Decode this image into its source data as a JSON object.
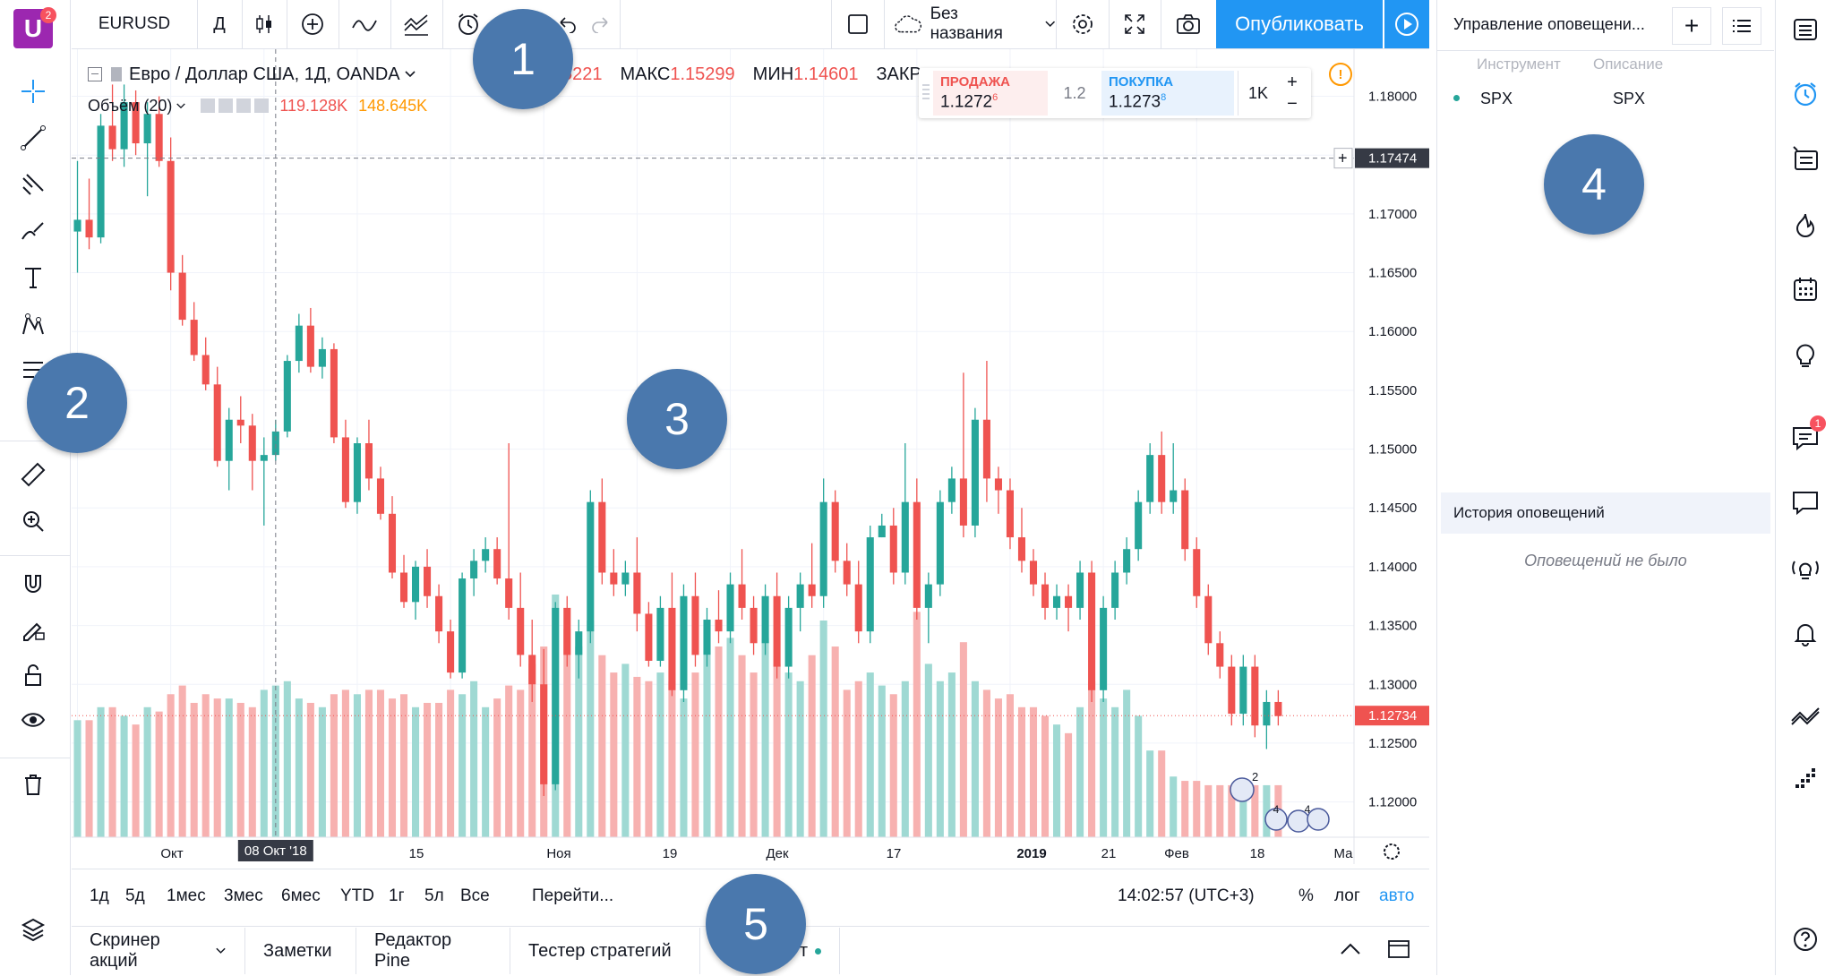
{
  "app": {
    "logo_letter": "U",
    "logo_badge": "2"
  },
  "toolbar": {
    "symbol": "EURUSD",
    "interval": "Д",
    "layout_name": "Без названия",
    "publish_label": "Опубликовать"
  },
  "legend": {
    "title": "Евро / Доллар США, 1Д, OANDA",
    "o_value": "5221",
    "high_label": "МАКС",
    "high_value": "1.15299",
    "low_label": "МИН",
    "low_value": "1.14601",
    "close_label": "ЗАКР",
    "volume_label": "Объём (20)",
    "volume_value_1": "119.128K",
    "volume_value_2": "148.645K"
  },
  "trade": {
    "sell_label": "ПРОДАЖА",
    "sell_price": "1.1272",
    "sell_sup": "6",
    "spread": "1.2",
    "buy_label": "ПОКУПКА",
    "buy_price": "1.1273",
    "buy_sup": "8",
    "qty": "1K"
  },
  "price_scale": {
    "ticks": [
      "1.18000",
      "1.17500",
      "1.17000",
      "1.16500",
      "1.16000",
      "1.15500",
      "1.15000",
      "1.14500",
      "1.14000",
      "1.13500",
      "1.13000",
      "1.12500",
      "1.12000"
    ],
    "crosshair_price": "1.17474",
    "last_price": "1.12734"
  },
  "time_scale": {
    "labels": [
      "Окт",
      "15",
      "Ноя",
      "19",
      "Дек",
      "17",
      "2019",
      "21",
      "Фев",
      "18",
      "Ма"
    ],
    "crosshair_date": "08 Окт '18"
  },
  "ranges": {
    "items": [
      "1д",
      "5д",
      "1мес",
      "3мес",
      "6мес",
      "YTD",
      "1г",
      "5л",
      "Все"
    ],
    "goto": "Перейти...",
    "time": "14:02:57 (UTC+3)",
    "percent": "%",
    "log": "лог",
    "auto": "авто"
  },
  "bottom_tabs": [
    "Скринер акций",
    "Заметки",
    "Редактор Pine",
    "Тестер стратегий",
    "т"
  ],
  "alerts": {
    "title": "Управление оповещени...",
    "col_instrument": "Инструмент",
    "col_description": "Описание",
    "rows": [
      {
        "instrument": "SPX",
        "description": "SPX"
      }
    ],
    "history_title": "История оповещений",
    "history_empty": "Оповещений не было"
  },
  "right_sidebar": {
    "chat_badge": "1"
  },
  "callouts": [
    "1",
    "2",
    "3",
    "4",
    "5"
  ],
  "events": {
    "badge_a": "2",
    "badge_b": "4",
    "badge_c": "4"
  },
  "colors": {
    "up": "#26a69a",
    "down": "#ef5350",
    "accent": "#2196f3",
    "callout": "#4a78ad"
  },
  "chart_data": {
    "type": "candlestick",
    "symbol": "EURUSD",
    "ylim": [
      1.117,
      1.184
    ],
    "candles": [
      [
        1.1685,
        1.1745,
        1.165,
        1.1695
      ],
      [
        1.1695,
        1.173,
        1.167,
        1.168
      ],
      [
        1.168,
        1.1785,
        1.1675,
        1.1775
      ],
      [
        1.1775,
        1.181,
        1.1745,
        1.1755
      ],
      [
        1.1755,
        1.181,
        1.174,
        1.1795
      ],
      [
        1.1795,
        1.1805,
        1.175,
        1.176
      ],
      [
        1.176,
        1.1795,
        1.1715,
        1.1785
      ],
      [
        1.1785,
        1.18,
        1.174,
        1.1745
      ],
      [
        1.1745,
        1.1765,
        1.1635,
        1.165
      ],
      [
        1.165,
        1.1665,
        1.1605,
        1.161
      ],
      [
        1.161,
        1.1625,
        1.1575,
        1.158
      ],
      [
        1.158,
        1.1595,
        1.155,
        1.1555
      ],
      [
        1.1555,
        1.157,
        1.1485,
        1.149
      ],
      [
        1.149,
        1.1535,
        1.1465,
        1.1525
      ],
      [
        1.1525,
        1.1545,
        1.1505,
        1.152
      ],
      [
        1.152,
        1.153,
        1.1465,
        1.149
      ],
      [
        1.149,
        1.151,
        1.1435,
        1.1495
      ],
      [
        1.1495,
        1.1525,
        1.149,
        1.1515
      ],
      [
        1.1515,
        1.158,
        1.151,
        1.1575
      ],
      [
        1.1575,
        1.1615,
        1.1565,
        1.1605
      ],
      [
        1.1605,
        1.162,
        1.1565,
        1.157
      ],
      [
        1.157,
        1.1595,
        1.156,
        1.1585
      ],
      [
        1.1585,
        1.159,
        1.1505,
        1.151
      ],
      [
        1.151,
        1.1525,
        1.145,
        1.1455
      ],
      [
        1.1455,
        1.151,
        1.1445,
        1.1505
      ],
      [
        1.1505,
        1.1525,
        1.1465,
        1.1475
      ],
      [
        1.1475,
        1.1485,
        1.144,
        1.1445
      ],
      [
        1.1445,
        1.146,
        1.139,
        1.1395
      ],
      [
        1.1395,
        1.141,
        1.1365,
        1.137
      ],
      [
        1.137,
        1.1405,
        1.1355,
        1.14
      ],
      [
        1.14,
        1.1415,
        1.1365,
        1.1375
      ],
      [
        1.1375,
        1.1385,
        1.1335,
        1.1345
      ],
      [
        1.1345,
        1.1355,
        1.1305,
        1.131
      ],
      [
        1.131,
        1.1395,
        1.1305,
        1.139
      ],
      [
        1.139,
        1.1415,
        1.1375,
        1.1405
      ],
      [
        1.1405,
        1.1425,
        1.1395,
        1.1415
      ],
      [
        1.1415,
        1.1425,
        1.1385,
        1.139
      ],
      [
        1.139,
        1.1505,
        1.1355,
        1.1365
      ],
      [
        1.1365,
        1.1395,
        1.1315,
        1.1325
      ],
      [
        1.1325,
        1.1355,
        1.1285,
        1.13
      ],
      [
        1.13,
        1.133,
        1.1205,
        1.1215
      ],
      [
        1.1215,
        1.137,
        1.121,
        1.1365
      ],
      [
        1.1365,
        1.1375,
        1.1315,
        1.1325
      ],
      [
        1.1325,
        1.1355,
        1.1305,
        1.1345
      ],
      [
        1.1345,
        1.1465,
        1.1335,
        1.1455
      ],
      [
        1.1455,
        1.1475,
        1.1385,
        1.1395
      ],
      [
        1.1395,
        1.1415,
        1.1375,
        1.1385
      ],
      [
        1.1385,
        1.1405,
        1.1375,
        1.1395
      ],
      [
        1.1395,
        1.1425,
        1.1345,
        1.136
      ],
      [
        1.136,
        1.137,
        1.1315,
        1.132
      ],
      [
        1.132,
        1.1375,
        1.1315,
        1.1365
      ],
      [
        1.1365,
        1.1395,
        1.129,
        1.1295
      ],
      [
        1.1295,
        1.1385,
        1.1285,
        1.1375
      ],
      [
        1.1375,
        1.1395,
        1.1315,
        1.1325
      ],
      [
        1.1325,
        1.1365,
        1.1315,
        1.1355
      ],
      [
        1.1355,
        1.138,
        1.1335,
        1.1345
      ],
      [
        1.1345,
        1.1395,
        1.1335,
        1.1385
      ],
      [
        1.1385,
        1.1415,
        1.1355,
        1.1365
      ],
      [
        1.1365,
        1.1375,
        1.1325,
        1.1335
      ],
      [
        1.1335,
        1.1385,
        1.1325,
        1.1375
      ],
      [
        1.1375,
        1.1395,
        1.1305,
        1.1315
      ],
      [
        1.1315,
        1.1375,
        1.1305,
        1.1365
      ],
      [
        1.1365,
        1.1395,
        1.1345,
        1.1385
      ],
      [
        1.1385,
        1.142,
        1.1365,
        1.1375
      ],
      [
        1.1375,
        1.1475,
        1.1365,
        1.1455
      ],
      [
        1.1455,
        1.1465,
        1.1395,
        1.1405
      ],
      [
        1.1405,
        1.142,
        1.1375,
        1.1385
      ],
      [
        1.1385,
        1.1405,
        1.1335,
        1.1345
      ],
      [
        1.1345,
        1.1435,
        1.1335,
        1.1425
      ],
      [
        1.1425,
        1.1445,
        1.1425,
        1.1435
      ],
      [
        1.1435,
        1.145,
        1.1385,
        1.1395
      ],
      [
        1.1395,
        1.1505,
        1.1385,
        1.1455
      ],
      [
        1.1455,
        1.1475,
        1.1355,
        1.1365
      ],
      [
        1.1365,
        1.1395,
        1.1335,
        1.1385
      ],
      [
        1.1385,
        1.1465,
        1.1375,
        1.1455
      ],
      [
        1.1455,
        1.1485,
        1.1445,
        1.1475
      ],
      [
        1.1475,
        1.1565,
        1.1425,
        1.1435
      ],
      [
        1.1435,
        1.1535,
        1.1425,
        1.1525
      ],
      [
        1.1525,
        1.1575,
        1.1455,
        1.1475
      ],
      [
        1.1475,
        1.1485,
        1.1445,
        1.1465
      ],
      [
        1.1465,
        1.1475,
        1.1415,
        1.1425
      ],
      [
        1.1425,
        1.145,
        1.1395,
        1.1405
      ],
      [
        1.1405,
        1.1415,
        1.1375,
        1.1385
      ],
      [
        1.1385,
        1.1395,
        1.1355,
        1.1365
      ],
      [
        1.1365,
        1.1385,
        1.1355,
        1.1375
      ],
      [
        1.1375,
        1.1385,
        1.1345,
        1.1365
      ],
      [
        1.1365,
        1.1405,
        1.1355,
        1.1395
      ],
      [
        1.1395,
        1.1405,
        1.1285,
        1.1295
      ],
      [
        1.1295,
        1.1375,
        1.1285,
        1.1365
      ],
      [
        1.1365,
        1.1405,
        1.1355,
        1.1395
      ],
      [
        1.1395,
        1.1425,
        1.1385,
        1.1415
      ],
      [
        1.1415,
        1.1465,
        1.1405,
        1.1455
      ],
      [
        1.1455,
        1.1505,
        1.1445,
        1.1495
      ],
      [
        1.1495,
        1.1515,
        1.1445,
        1.1455
      ],
      [
        1.1455,
        1.1505,
        1.1445,
        1.1465
      ],
      [
        1.1465,
        1.1475,
        1.1405,
        1.1415
      ],
      [
        1.1415,
        1.1425,
        1.1365,
        1.1375
      ],
      [
        1.1375,
        1.1385,
        1.1325,
        1.1335
      ],
      [
        1.1335,
        1.1345,
        1.1305,
        1.1315
      ],
      [
        1.1315,
        1.1325,
        1.1265,
        1.1275
      ],
      [
        1.1275,
        1.1325,
        1.1265,
        1.1315
      ],
      [
        1.1315,
        1.1325,
        1.1255,
        1.1265
      ],
      [
        1.1265,
        1.1295,
        1.1245,
        1.1285
      ],
      [
        1.1285,
        1.1295,
        1.1265,
        1.1273
      ]
    ],
    "volume_ratio": [
      0.27,
      0.27,
      0.3,
      0.3,
      0.28,
      0.26,
      0.3,
      0.29,
      0.33,
      0.35,
      0.31,
      0.33,
      0.32,
      0.32,
      0.31,
      0.3,
      0.34,
      0.35,
      0.36,
      0.32,
      0.31,
      0.3,
      0.33,
      0.34,
      0.33,
      0.34,
      0.34,
      0.32,
      0.33,
      0.3,
      0.31,
      0.31,
      0.34,
      0.33,
      0.36,
      0.3,
      0.32,
      0.35,
      0.34,
      0.4,
      0.44,
      0.56,
      0.48,
      0.44,
      0.5,
      0.42,
      0.38,
      0.4,
      0.37,
      0.36,
      0.38,
      0.36,
      0.32,
      0.38,
      0.42,
      0.44,
      0.46,
      0.42,
      0.38,
      0.46,
      0.4,
      0.38,
      0.36,
      0.42,
      0.5,
      0.44,
      0.34,
      0.36,
      0.38,
      0.35,
      0.33,
      0.36,
      0.52,
      0.4,
      0.36,
      0.38,
      0.45,
      0.36,
      0.34,
      0.32,
      0.33,
      0.3,
      0.3,
      0.28,
      0.26,
      0.24,
      0.3,
      0.36,
      0.32,
      0.3,
      0.34,
      0.28,
      0.2,
      0.2,
      0.14,
      0.13,
      0.13,
      0.12,
      0.12,
      0.12,
      0.11,
      0.12,
      0.12,
      0.12,
      0.12
    ]
  }
}
